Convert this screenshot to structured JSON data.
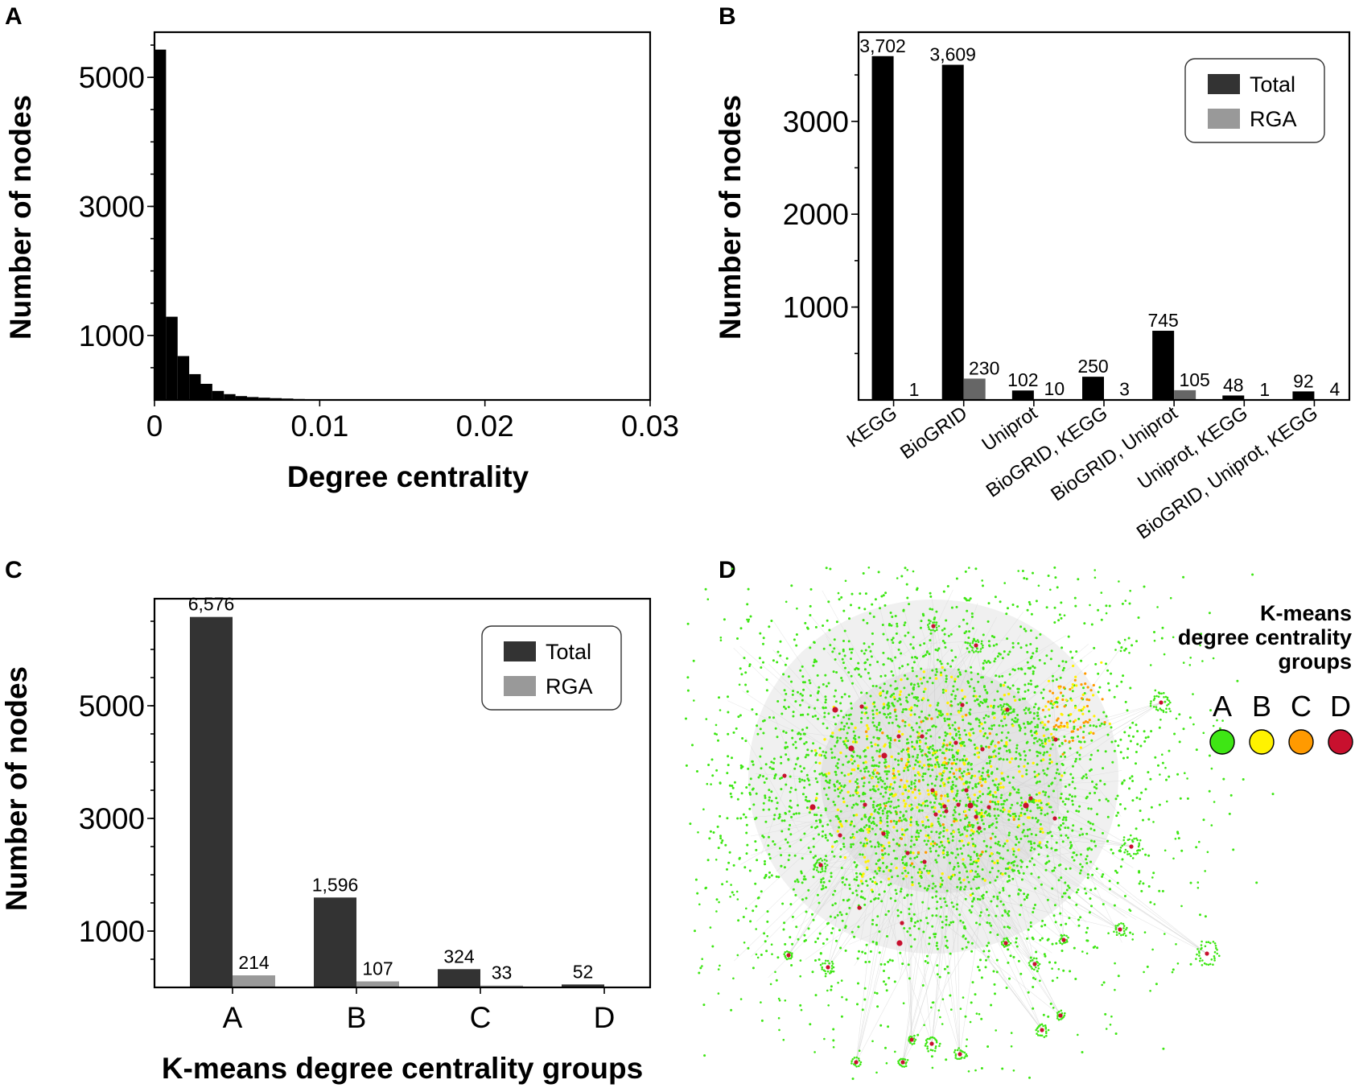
{
  "chart_data": [
    {
      "panel": "A",
      "type": "bar",
      "title": "",
      "xlabel": "Degree centrality",
      "ylabel": "Number of nodes",
      "xlim": [
        0,
        0.03
      ],
      "ylim": [
        0,
        5700
      ],
      "x_ticks": [
        0,
        0.01,
        0.02,
        0.03
      ],
      "x_tick_labels": [
        "0",
        "0.01",
        "0.02",
        "0.03"
      ],
      "y_ticks": [
        1000,
        3000,
        5000
      ],
      "y_tick_labels": [
        "1000",
        "3000",
        "5000"
      ],
      "bin_width": 0.0007,
      "bin_starts": [
        0,
        0.0007,
        0.0014,
        0.0021,
        0.0028,
        0.0035,
        0.0042,
        0.0049,
        0.0056,
        0.0063,
        0.007,
        0.0077,
        0.0084,
        0.0091,
        0.0098,
        0.0105,
        0.0112,
        0.0119,
        0.0126,
        0.0133
      ],
      "values": [
        5430,
        1290,
        680,
        400,
        250,
        140,
        90,
        60,
        45,
        35,
        28,
        22,
        15,
        10,
        8,
        6,
        5,
        4,
        3,
        2
      ]
    },
    {
      "panel": "B",
      "type": "bar",
      "title": "",
      "xlabel": "",
      "ylabel": "Number of nodes",
      "ylim": [
        0,
        3960
      ],
      "y_ticks": [
        1000,
        2000,
        3000
      ],
      "y_tick_labels": [
        "1000",
        "2000",
        "3000"
      ],
      "categories": [
        "KEGG",
        "BioGRID",
        "Uniprot",
        "BioGRID, KEGG",
        "BioGRID, Uniprot",
        "Uniprot, KEGG",
        "BioGRID, Uniprot, KEGG"
      ],
      "series": [
        {
          "name": "Total",
          "color": "#000000",
          "values": [
            3702,
            3609,
            102,
            250,
            745,
            48,
            92
          ],
          "labels": [
            "3,702",
            "3,609",
            "102",
            "250",
            "745",
            "48",
            "92"
          ]
        },
        {
          "name": "RGA",
          "color": "#666666",
          "values": [
            1,
            230,
            10,
            3,
            105,
            1,
            4
          ],
          "labels": [
            "1",
            "230",
            "10",
            "3",
            "105",
            "1",
            "4"
          ]
        }
      ],
      "legend": {
        "position": "top-right",
        "entries": [
          {
            "label": "Total",
            "color": "#333333"
          },
          {
            "label": "RGA",
            "color": "#999999"
          }
        ]
      }
    },
    {
      "panel": "C",
      "type": "bar",
      "title": "",
      "xlabel": "K-means degree centrality groups",
      "ylabel": "Number of nodes",
      "ylim": [
        0,
        6900
      ],
      "y_ticks": [
        1000,
        3000,
        5000
      ],
      "y_tick_labels": [
        "1000",
        "3000",
        "5000"
      ],
      "categories": [
        "A",
        "B",
        "C",
        "D"
      ],
      "series": [
        {
          "name": "Total",
          "color": "#333333",
          "values": [
            6576,
            1596,
            324,
            52
          ],
          "labels": [
            "6,576",
            "1,596",
            "324",
            "52"
          ]
        },
        {
          "name": "RGA",
          "color": "#999999",
          "values": [
            214,
            107,
            33,
            0
          ],
          "labels": [
            "214",
            "107",
            "33",
            ""
          ]
        }
      ],
      "legend": {
        "position": "top-right",
        "entries": [
          {
            "label": "Total",
            "color": "#333333"
          },
          {
            "label": "RGA",
            "color": "#999999"
          }
        ]
      }
    }
  ],
  "network": {
    "panel": "D",
    "type": "network",
    "legend_title": [
      "K-means",
      "degree centrality",
      "groups"
    ],
    "groups": [
      {
        "label": "A",
        "color": "#3ee614"
      },
      {
        "label": "B",
        "color": "#fff200"
      },
      {
        "label": "C",
        "color": "#ff9a00"
      },
      {
        "label": "D",
        "color": "#c8102e"
      }
    ]
  }
}
